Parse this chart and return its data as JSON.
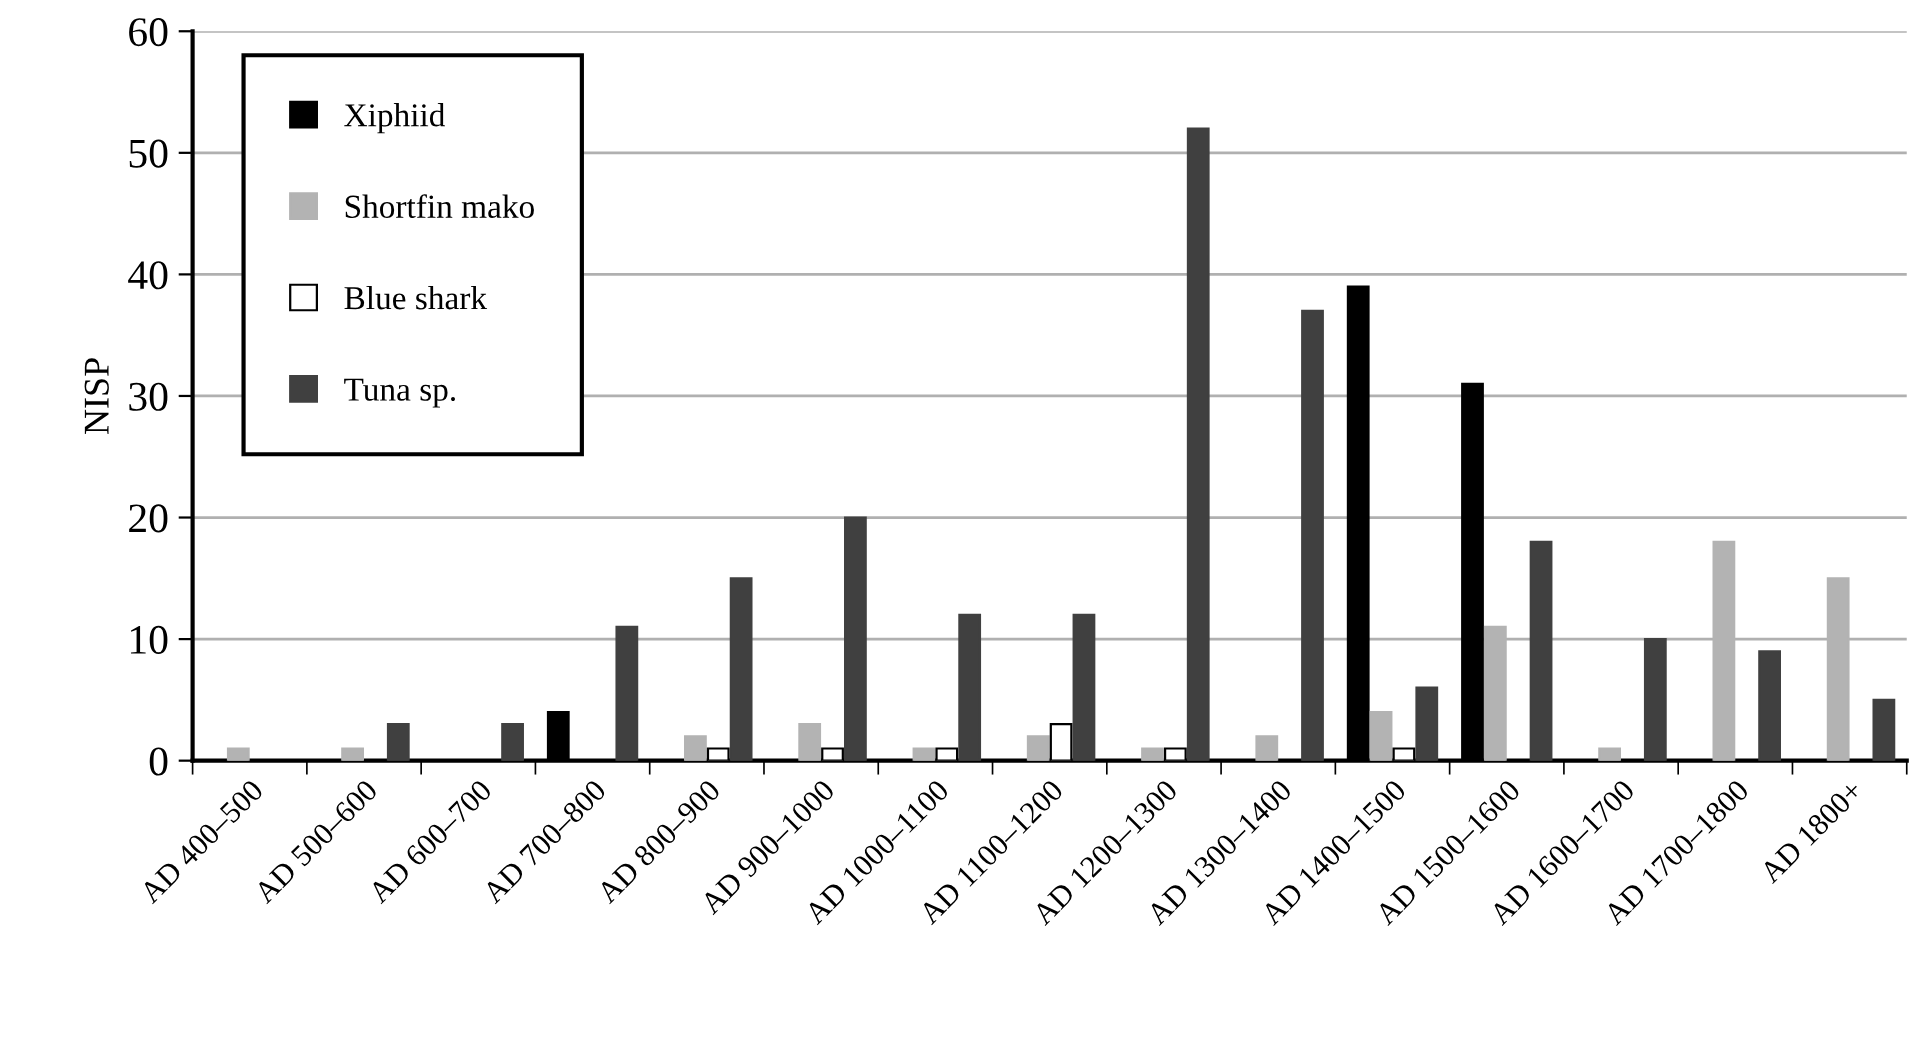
{
  "chart_data": {
    "type": "bar",
    "ylabel": "NISP",
    "categories": [
      "AD 400–500",
      "AD 500–600",
      "AD 600–700",
      "AD 700–800",
      "AD 800–900",
      "AD 900–1000",
      "AD 1000–1100",
      "AD 1100–1200",
      "AD 1200–1300",
      "AD 1300–1400",
      "AD 1400–1500",
      "AD 1500–1600",
      "AD 1600–1700",
      "AD 1700–1800",
      "AD 1800+"
    ],
    "series": [
      {
        "name": "Xiphiid",
        "color": "#000000",
        "values": [
          0,
          0,
          0,
          4,
          0,
          0,
          0,
          0,
          0,
          0,
          39,
          31,
          0,
          0,
          0
        ]
      },
      {
        "name": "Shortfin mako",
        "color": "#b3b3b3",
        "values": [
          1,
          1,
          0,
          0,
          2,
          3,
          1,
          2,
          1,
          2,
          4,
          11,
          1,
          18,
          15
        ]
      },
      {
        "name": "Blue shark",
        "color": "#ffffff",
        "values": [
          0,
          0,
          0,
          0,
          1,
          1,
          1,
          3,
          1,
          0,
          1,
          0,
          0,
          0,
          0
        ]
      },
      {
        "name": "Tuna sp.",
        "color": "#404040",
        "values": [
          0,
          3,
          3,
          11,
          15,
          20,
          12,
          12,
          52,
          37,
          6,
          18,
          10,
          9,
          5
        ]
      }
    ],
    "ylim": [
      0,
      60
    ],
    "yticks": [
      0,
      10,
      20,
      30,
      40,
      50,
      60
    ],
    "grid": "y",
    "legend": "top left"
  }
}
